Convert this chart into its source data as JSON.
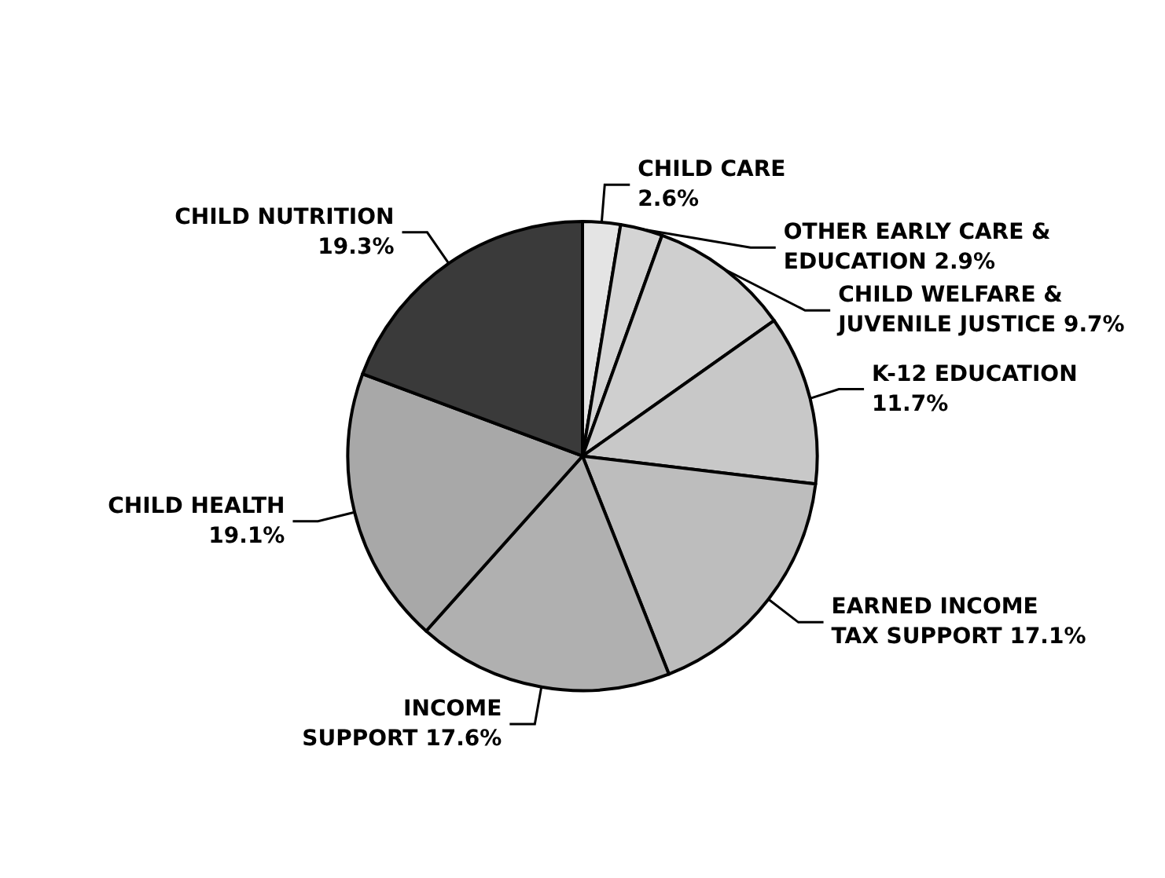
{
  "chart_data": {
    "type": "pie",
    "categories": [
      "CHILD CARE",
      "OTHER EARLY CARE &\nEDUCATION",
      "CHILD WELFARE &\nJUVENILE JUSTICE",
      "K-12 EDUCATION",
      "EARNED INCOME\nTAX SUPPORT",
      "INCOME\nSUPPORT",
      "CHILD HEALTH",
      "CHILD NUTRITION"
    ],
    "values": [
      2.6,
      2.9,
      9.7,
      11.7,
      17.1,
      17.6,
      19.1,
      19.3
    ],
    "value_labels": [
      "2.6%",
      "2.9%",
      "9.7%",
      "11.7%",
      "17.1%",
      "17.6%",
      "19.1%",
      "19.3%"
    ],
    "colors": [
      "#e4e4e4",
      "#d4d4d4",
      "#cfcfcf",
      "#c8c8c8",
      "#bdbdbd",
      "#b0b0b0",
      "#a8a8a8",
      "#3a3a3a"
    ],
    "legend": false
  }
}
